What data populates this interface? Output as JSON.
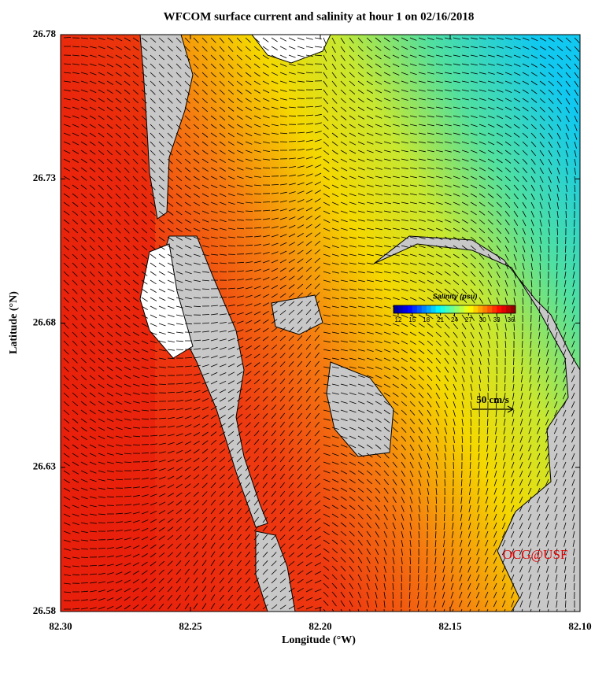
{
  "chart_data": {
    "type": "map",
    "title": "WFCOM surface current and salinity at hour 1 on 02/16/2018",
    "x_label": "Longitude (°W)",
    "y_label": "Latitude (°N)",
    "xlim": [
      82.3,
      82.1
    ],
    "xticks": [
      {
        "value": 82.3,
        "label": "82.30"
      },
      82.25,
      {
        "value": 82.2,
        "label": "82.20"
      },
      82.15,
      {
        "value": 82.1,
        "label": "82.10"
      }
    ],
    "ylim": [
      26.58,
      26.78
    ],
    "yticks": [
      26.58,
      26.63,
      26.68,
      26.73,
      26.78
    ],
    "colorbar": {
      "label": "Salinity (psu)",
      "clim": [
        11,
        37
      ],
      "ticks": [
        12,
        15,
        18,
        21,
        24,
        27,
        30,
        33,
        36
      ]
    },
    "scale_label": "50 cm/s",
    "credit": "OCG@USF"
  }
}
